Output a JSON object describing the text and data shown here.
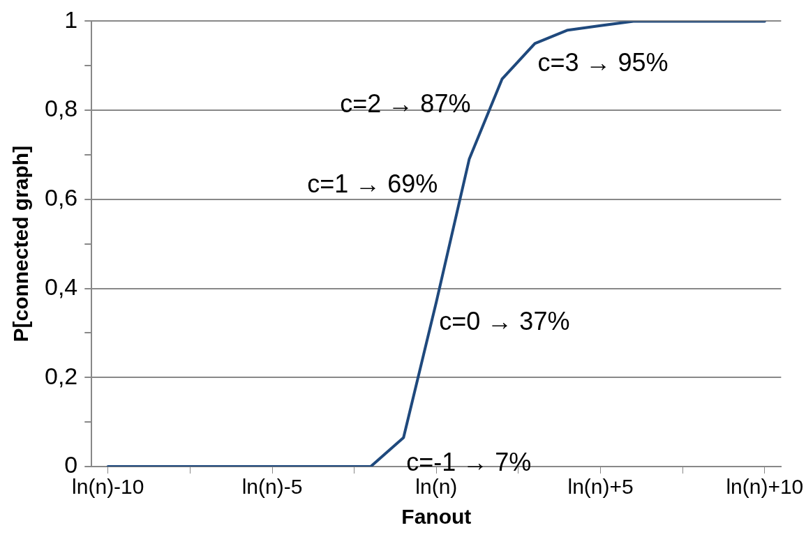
{
  "chart_data": {
    "type": "line",
    "xlabel": "Fanout",
    "ylabel": "P[connected graph]",
    "x": [
      -10,
      -9,
      -8,
      -7,
      -6,
      -5,
      -4,
      -3,
      -2,
      -1,
      0,
      1,
      2,
      3,
      4,
      5,
      6,
      7,
      8,
      9,
      10
    ],
    "series": [
      {
        "color": "#1f497d",
        "values": [
          0,
          0,
          0,
          0,
          0,
          0,
          0,
          0,
          0,
          0.065,
          0.37,
          0.69,
          0.87,
          0.95,
          0.98,
          0.99,
          1,
          1,
          1,
          1,
          1
        ]
      }
    ],
    "xlim": [
      -10.5,
      10.5
    ],
    "xticks": [
      {
        "value": -10,
        "label": "ln(n)-10"
      },
      {
        "value": -7.5,
        "label": null
      },
      {
        "value": -5,
        "label": "ln(n)-5"
      },
      {
        "value": -2.5,
        "label": null
      },
      {
        "value": 0,
        "label": "ln(n)"
      },
      {
        "value": 2.5,
        "label": null
      },
      {
        "value": 5,
        "label": "ln(n)+5"
      },
      {
        "value": 7.5,
        "label": null
      },
      {
        "value": 10,
        "label": "ln(n)+10"
      }
    ],
    "ylim": [
      0,
      1
    ],
    "yticks": [
      0,
      {
        "value": 0.1,
        "label": null
      },
      {
        "value": 0.2,
        "label": "0,2"
      },
      {
        "value": 0.3,
        "label": null
      },
      {
        "value": 0.4,
        "label": "0,4"
      },
      {
        "value": 0.5,
        "label": null
      },
      {
        "value": 0.6,
        "label": "0,6"
      },
      {
        "value": 0.7,
        "label": null
      },
      {
        "value": 0.8,
        "label": "0,8"
      },
      {
        "value": 0.9,
        "label": null
      },
      1
    ],
    "grid": "y",
    "marker": "none",
    "line_style": "solid",
    "legend": false,
    "annotations": [
      {
        "text": "c=-1 → 7%",
        "x": -1,
        "y": 0.065
      },
      {
        "text": "c=0 → 37%",
        "x": 0,
        "y": 0.37
      },
      {
        "text": "c=1 → 69%",
        "x": 1,
        "y": 0.69
      },
      {
        "text": "c=2 → 87%",
        "x": 2,
        "y": 0.87
      },
      {
        "text": "c=3 → 95%",
        "x": 3,
        "y": 0.95
      }
    ]
  }
}
